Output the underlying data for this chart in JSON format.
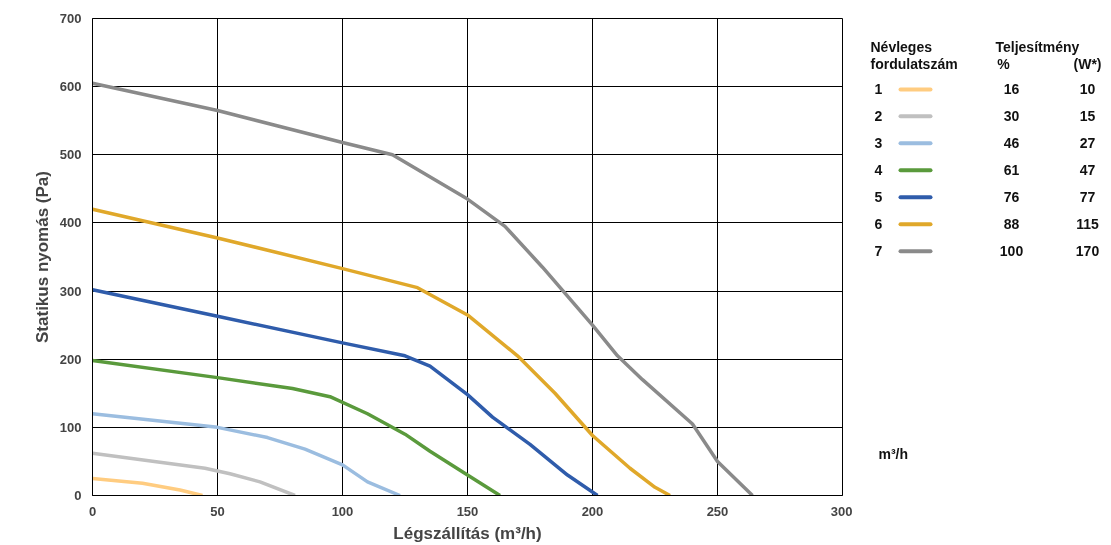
{
  "chart_data": {
    "type": "line",
    "xlabel": "Légszállítás (m³/h)",
    "ylabel": "Statikus nyomás (Pa)",
    "legend_title": "Névleges fordulatszám",
    "legend": "right",
    "grid": true,
    "marker": "none",
    "line_style": "solid",
    "xlim": [
      0,
      300
    ],
    "xticks": [
      0,
      50,
      100,
      150,
      200,
      250,
      300
    ],
    "ylim": [
      0,
      700
    ],
    "yticks": [
      0,
      100,
      200,
      300,
      400,
      500,
      600,
      700
    ],
    "annotations": [
      "Teljesítmény",
      "%",
      "(W*)",
      "16",
      "10",
      "30",
      "15",
      "46",
      "27",
      "61",
      "47",
      "76",
      "77",
      "88",
      "115",
      "100",
      "170",
      "m³/h"
    ],
    "series": [
      {
        "name": "1",
        "color": "#ffcc80",
        "x": [
          0,
          20,
          35,
          44
        ],
        "values": [
          25,
          18,
          8,
          0
        ]
      },
      {
        "name": "2",
        "color": "#c0c0c0",
        "x": [
          0,
          45,
          55,
          67,
          81
        ],
        "values": [
          62,
          40,
          32,
          20,
          0
        ]
      },
      {
        "name": "3",
        "color": "#9bbde0",
        "x": [
          0,
          50,
          70,
          85,
          100,
          110,
          123
        ],
        "values": [
          120,
          100,
          85,
          68,
          45,
          20,
          0
        ]
      },
      {
        "name": "4",
        "color": "#5a9a3c",
        "x": [
          0,
          50,
          80,
          95,
          110,
          125,
          135,
          150,
          163
        ],
        "values": [
          198,
          173,
          157,
          145,
          120,
          90,
          65,
          30,
          0
        ]
      },
      {
        "name": "5",
        "color": "#2f5cab",
        "x": [
          0,
          50,
          100,
          125,
          135,
          150,
          160,
          175,
          190,
          202
        ],
        "values": [
          302,
          263,
          224,
          205,
          190,
          148,
          115,
          75,
          30,
          0
        ]
      },
      {
        "name": "6",
        "color": "#e0a82a",
        "x": [
          0,
          50,
          100,
          130,
          150,
          170,
          185,
          200,
          215,
          225,
          231
        ],
        "values": [
          420,
          378,
          333,
          305,
          265,
          205,
          150,
          88,
          40,
          12,
          0
        ]
      },
      {
        "name": "7",
        "color": "#8a8a8a",
        "x": [
          0,
          50,
          100,
          120,
          150,
          165,
          180,
          200,
          210,
          220,
          240,
          250,
          264
        ],
        "values": [
          605,
          565,
          518,
          500,
          435,
          395,
          335,
          250,
          205,
          170,
          105,
          50,
          0
        ]
      }
    ]
  }
}
